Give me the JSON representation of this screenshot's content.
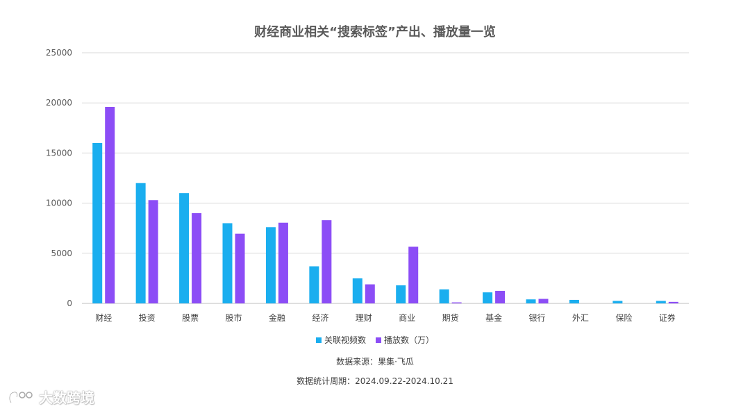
{
  "chart_data": {
    "type": "bar",
    "title": "财经商业相关“搜索标签”产出、播放量一览",
    "categories": [
      "财经",
      "投资",
      "股票",
      "股市",
      "金融",
      "经济",
      "理财",
      "商业",
      "期货",
      "基金",
      "银行",
      "外汇",
      "保险",
      "证券"
    ],
    "series": [
      {
        "name": "关联视频数",
        "color": "#1aaeef",
        "values": [
          16000,
          12000,
          11000,
          8000,
          7600,
          3700,
          2500,
          1800,
          1400,
          1100,
          400,
          350,
          250,
          250
        ]
      },
      {
        "name": "播放数（万）",
        "color": "#8c4df6",
        "values": [
          19600,
          10300,
          9000,
          6950,
          8050,
          8300,
          1900,
          5650,
          100,
          1250,
          450,
          0,
          0,
          150
        ]
      }
    ],
    "yticks": [
      "0",
      "5000",
      "10000",
      "15000",
      "20000",
      "25000"
    ],
    "ylim": [
      0,
      25000
    ],
    "grid": true,
    "legend": "bottom-center"
  },
  "footer": {
    "source": "数据来源：果集·飞瓜",
    "period": "数据统计周期：2024.09.22-2024.10.21"
  },
  "watermark": {
    "text": "大数跨境"
  }
}
